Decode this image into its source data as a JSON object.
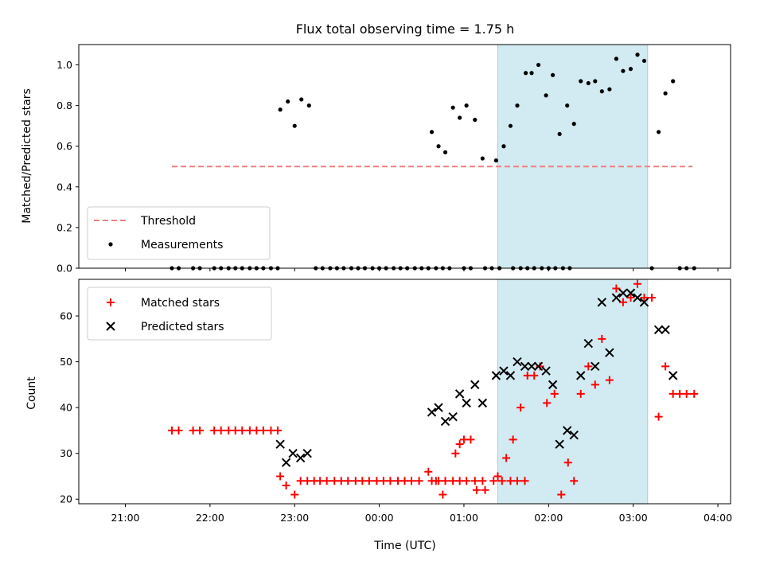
{
  "chart_data": [
    {
      "type": "scatter",
      "title": "Flux total observing time = 1.75 h",
      "xlabel": "",
      "ylabel": "Matched/Predicted stars",
      "xlim": [
        -3.55,
        4.15
      ],
      "ylim": [
        0.0,
        1.1
      ],
      "yticks": [
        "0.0",
        "0.2",
        "0.4",
        "0.6",
        "0.8",
        "1.0"
      ],
      "highlight_span": {
        "start": 1.4,
        "end": 3.17,
        "color": "#add8e6"
      },
      "threshold": {
        "name": "Threshold",
        "value": 0.5,
        "x": [
          -2.45,
          3.7
        ],
        "color": "#f08080"
      },
      "legend": {
        "position": "lower-left",
        "entries": [
          "Threshold",
          "Measurements"
        ]
      },
      "series": [
        {
          "name": "Measurements",
          "color": "#000000",
          "points": [
            [
              -2.45,
              0.0
            ],
            [
              -2.37,
              0.0
            ],
            [
              -2.2,
              0.0
            ],
            [
              -2.12,
              0.0
            ],
            [
              -1.95,
              0.0
            ],
            [
              -1.87,
              0.0
            ],
            [
              -1.78,
              0.0
            ],
            [
              -1.7,
              0.0
            ],
            [
              -1.62,
              0.0
            ],
            [
              -1.53,
              0.0
            ],
            [
              -1.45,
              0.0
            ],
            [
              -1.37,
              0.0
            ],
            [
              -1.28,
              0.0
            ],
            [
              -1.2,
              0.0
            ],
            [
              -1.17,
              0.78
            ],
            [
              -1.08,
              0.82
            ],
            [
              -1.0,
              0.7
            ],
            [
              -0.92,
              0.83
            ],
            [
              -0.83,
              0.8
            ],
            [
              -0.75,
              0.0
            ],
            [
              -0.67,
              0.0
            ],
            [
              -0.58,
              0.0
            ],
            [
              -0.5,
              0.0
            ],
            [
              -0.42,
              0.0
            ],
            [
              -0.33,
              0.0
            ],
            [
              -0.25,
              0.0
            ],
            [
              -0.17,
              0.0
            ],
            [
              -0.08,
              0.0
            ],
            [
              0.0,
              0.0
            ],
            [
              0.08,
              0.0
            ],
            [
              0.17,
              0.0
            ],
            [
              0.25,
              0.0
            ],
            [
              0.33,
              0.0
            ],
            [
              0.42,
              0.0
            ],
            [
              0.5,
              0.0
            ],
            [
              0.58,
              0.0
            ],
            [
              0.67,
              0.0
            ],
            [
              0.75,
              0.0
            ],
            [
              0.83,
              0.0
            ],
            [
              1.0,
              0.0
            ],
            [
              1.08,
              0.0
            ],
            [
              1.25,
              0.0
            ],
            [
              1.33,
              0.0
            ],
            [
              1.42,
              0.0
            ],
            [
              1.58,
              0.0
            ],
            [
              1.67,
              0.0
            ],
            [
              1.75,
              0.0
            ],
            [
              1.83,
              0.0
            ],
            [
              1.92,
              0.0
            ],
            [
              2.0,
              0.0
            ],
            [
              2.08,
              0.0
            ],
            [
              2.17,
              0.0
            ],
            [
              2.25,
              0.0
            ],
            [
              0.62,
              0.67
            ],
            [
              0.7,
              0.6
            ],
            [
              0.78,
              0.57
            ],
            [
              0.87,
              0.79
            ],
            [
              0.95,
              0.74
            ],
            [
              1.03,
              0.8
            ],
            [
              1.13,
              0.73
            ],
            [
              1.22,
              0.54
            ],
            [
              1.38,
              0.53
            ],
            [
              1.47,
              0.6
            ],
            [
              1.55,
              0.7
            ],
            [
              1.63,
              0.8
            ],
            [
              1.73,
              0.96
            ],
            [
              1.8,
              0.96
            ],
            [
              1.88,
              1.0
            ],
            [
              1.97,
              0.85
            ],
            [
              2.05,
              0.95
            ],
            [
              2.13,
              0.66
            ],
            [
              2.22,
              0.8
            ],
            [
              2.3,
              0.71
            ],
            [
              2.38,
              0.92
            ],
            [
              2.47,
              0.91
            ],
            [
              2.55,
              0.92
            ],
            [
              2.63,
              0.87
            ],
            [
              2.72,
              0.88
            ],
            [
              2.8,
              1.03
            ],
            [
              2.88,
              0.97
            ],
            [
              2.97,
              0.98
            ],
            [
              3.05,
              1.05
            ],
            [
              3.13,
              1.02
            ],
            [
              3.3,
              0.67
            ],
            [
              3.38,
              0.86
            ],
            [
              3.47,
              0.92
            ],
            [
              3.22,
              0.0
            ],
            [
              3.55,
              0.0
            ],
            [
              3.63,
              0.0
            ],
            [
              3.72,
              0.0
            ]
          ]
        }
      ]
    },
    {
      "type": "scatter",
      "title": "",
      "xlabel": "Time (UTC)",
      "ylabel": "Count",
      "xlim": [
        -3.55,
        4.15
      ],
      "ylim": [
        19,
        68
      ],
      "xticks": [
        {
          "value": -3.0,
          "label": "21:00"
        },
        {
          "value": -2.0,
          "label": "22:00"
        },
        {
          "value": -1.0,
          "label": "23:00"
        },
        {
          "value": 0.0,
          "label": "00:00"
        },
        {
          "value": 1.0,
          "label": "01:00"
        },
        {
          "value": 2.0,
          "label": "02:00"
        },
        {
          "value": 3.0,
          "label": "03:00"
        },
        {
          "value": 4.0,
          "label": "04:00"
        }
      ],
      "yticks": [
        "20",
        "30",
        "40",
        "50",
        "60"
      ],
      "highlight_span": {
        "start": 1.4,
        "end": 3.17,
        "color": "#add8e6"
      },
      "legend": {
        "position": "upper-left",
        "entries": [
          "Matched stars",
          "Predicted stars"
        ]
      },
      "series": [
        {
          "name": "Matched stars",
          "marker": "+",
          "color": "#ff0000",
          "points": [
            [
              -2.45,
              35
            ],
            [
              -2.37,
              35
            ],
            [
              -2.2,
              35
            ],
            [
              -2.12,
              35
            ],
            [
              -1.95,
              35
            ],
            [
              -1.87,
              35
            ],
            [
              -1.78,
              35
            ],
            [
              -1.7,
              35
            ],
            [
              -1.62,
              35
            ],
            [
              -1.53,
              35
            ],
            [
              -1.45,
              35
            ],
            [
              -1.37,
              35
            ],
            [
              -1.28,
              35
            ],
            [
              -1.2,
              35
            ],
            [
              -1.17,
              25
            ],
            [
              -1.1,
              23
            ],
            [
              -1.0,
              21
            ],
            [
              -0.93,
              24
            ],
            [
              -0.85,
              24
            ],
            [
              -0.77,
              24
            ],
            [
              -0.7,
              24
            ],
            [
              -0.62,
              24
            ],
            [
              -0.53,
              24
            ],
            [
              -0.45,
              24
            ],
            [
              -0.37,
              24
            ],
            [
              -0.28,
              24
            ],
            [
              -0.2,
              24
            ],
            [
              -0.12,
              24
            ],
            [
              -0.03,
              24
            ],
            [
              0.05,
              24
            ],
            [
              0.13,
              24
            ],
            [
              0.22,
              24
            ],
            [
              0.3,
              24
            ],
            [
              0.38,
              24
            ],
            [
              0.47,
              24
            ],
            [
              0.62,
              24
            ],
            [
              0.7,
              24
            ],
            [
              0.78,
              24
            ],
            [
              0.87,
              24
            ],
            [
              0.95,
              24
            ],
            [
              1.03,
              24
            ],
            [
              1.13,
              24
            ],
            [
              1.22,
              24
            ],
            [
              1.35,
              24
            ],
            [
              1.45,
              24
            ],
            [
              1.55,
              24
            ],
            [
              1.63,
              24
            ],
            [
              1.72,
              24
            ],
            [
              0.58,
              26
            ],
            [
              0.67,
              24
            ],
            [
              0.75,
              21
            ],
            [
              0.9,
              30
            ],
            [
              0.95,
              32
            ],
            [
              1.0,
              33
            ],
            [
              1.08,
              33
            ],
            [
              1.15,
              22
            ],
            [
              1.25,
              22
            ],
            [
              1.4,
              25
            ],
            [
              1.5,
              29
            ],
            [
              1.58,
              33
            ],
            [
              1.67,
              40
            ],
            [
              1.75,
              47
            ],
            [
              1.83,
              47
            ],
            [
              1.9,
              49
            ],
            [
              1.98,
              41
            ],
            [
              2.07,
              43
            ],
            [
              2.15,
              21
            ],
            [
              2.23,
              28
            ],
            [
              2.3,
              24
            ],
            [
              2.38,
              43
            ],
            [
              2.47,
              49
            ],
            [
              2.55,
              45
            ],
            [
              2.63,
              55
            ],
            [
              2.72,
              46
            ],
            [
              2.8,
              66
            ],
            [
              2.88,
              63
            ],
            [
              2.97,
              64
            ],
            [
              3.05,
              67
            ],
            [
              3.13,
              64
            ],
            [
              3.22,
              64
            ],
            [
              3.3,
              38
            ],
            [
              3.38,
              49
            ],
            [
              3.47,
              43
            ],
            [
              3.55,
              43
            ],
            [
              3.63,
              43
            ],
            [
              3.72,
              43
            ]
          ]
        },
        {
          "name": "Predicted stars",
          "marker": "x",
          "color": "#000000",
          "points": [
            [
              -1.17,
              32
            ],
            [
              -1.1,
              28
            ],
            [
              -1.02,
              30
            ],
            [
              -0.93,
              29
            ],
            [
              -0.85,
              30
            ],
            [
              0.62,
              39
            ],
            [
              0.7,
              40
            ],
            [
              0.78,
              37
            ],
            [
              0.87,
              38
            ],
            [
              0.95,
              43
            ],
            [
              1.03,
              41
            ],
            [
              1.13,
              45
            ],
            [
              1.22,
              41
            ],
            [
              1.38,
              47
            ],
            [
              1.47,
              48
            ],
            [
              1.55,
              47
            ],
            [
              1.63,
              50
            ],
            [
              1.72,
              49
            ],
            [
              1.8,
              49
            ],
            [
              1.88,
              49
            ],
            [
              1.97,
              48
            ],
            [
              2.05,
              45
            ],
            [
              2.13,
              32
            ],
            [
              2.22,
              35
            ],
            [
              2.3,
              34
            ],
            [
              2.38,
              47
            ],
            [
              2.47,
              54
            ],
            [
              2.55,
              49
            ],
            [
              2.63,
              63
            ],
            [
              2.72,
              52
            ],
            [
              2.8,
              64
            ],
            [
              2.88,
              65
            ],
            [
              2.97,
              65
            ],
            [
              3.05,
              64
            ],
            [
              3.13,
              63
            ],
            [
              3.3,
              57
            ],
            [
              3.38,
              57
            ],
            [
              3.47,
              47
            ]
          ]
        }
      ]
    }
  ]
}
